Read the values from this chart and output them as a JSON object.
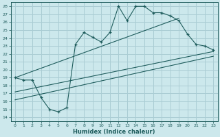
{
  "xlabel": "Humidex (Indice chaleur)",
  "bg_color": "#cce8ec",
  "line_color": "#1e5c5c",
  "grid_color": "#aacdd4",
  "xlim": [
    -0.5,
    23.5
  ],
  "ylim": [
    13.5,
    28.5
  ],
  "xticks": [
    0,
    1,
    2,
    3,
    4,
    5,
    6,
    7,
    8,
    9,
    10,
    11,
    12,
    13,
    14,
    15,
    16,
    17,
    18,
    19,
    20,
    21,
    22,
    23
  ],
  "yticks": [
    14,
    15,
    16,
    17,
    18,
    19,
    20,
    21,
    22,
    23,
    24,
    25,
    26,
    27,
    28
  ],
  "line1_x": [
    0,
    1,
    2,
    3,
    4,
    5,
    6,
    7,
    8,
    9,
    10,
    11,
    12,
    13,
    14,
    15,
    16,
    17,
    18,
    19,
    20,
    21,
    22,
    23
  ],
  "line1_y": [
    19.0,
    18.7,
    18.7,
    16.5,
    15.0,
    14.7,
    15.2,
    23.2,
    24.7,
    24.1,
    23.5,
    24.7,
    28.0,
    26.2,
    28.0,
    28.0,
    27.2,
    27.2,
    26.8,
    26.2,
    24.5,
    23.2,
    23.0,
    22.5
  ],
  "line2_x": [
    0,
    19
  ],
  "line2_y": [
    19.0,
    26.5
  ],
  "line3_x": [
    0,
    23
  ],
  "line3_y": [
    17.2,
    22.3
  ],
  "line4_x": [
    0,
    23
  ],
  "line4_y": [
    16.2,
    21.7
  ]
}
